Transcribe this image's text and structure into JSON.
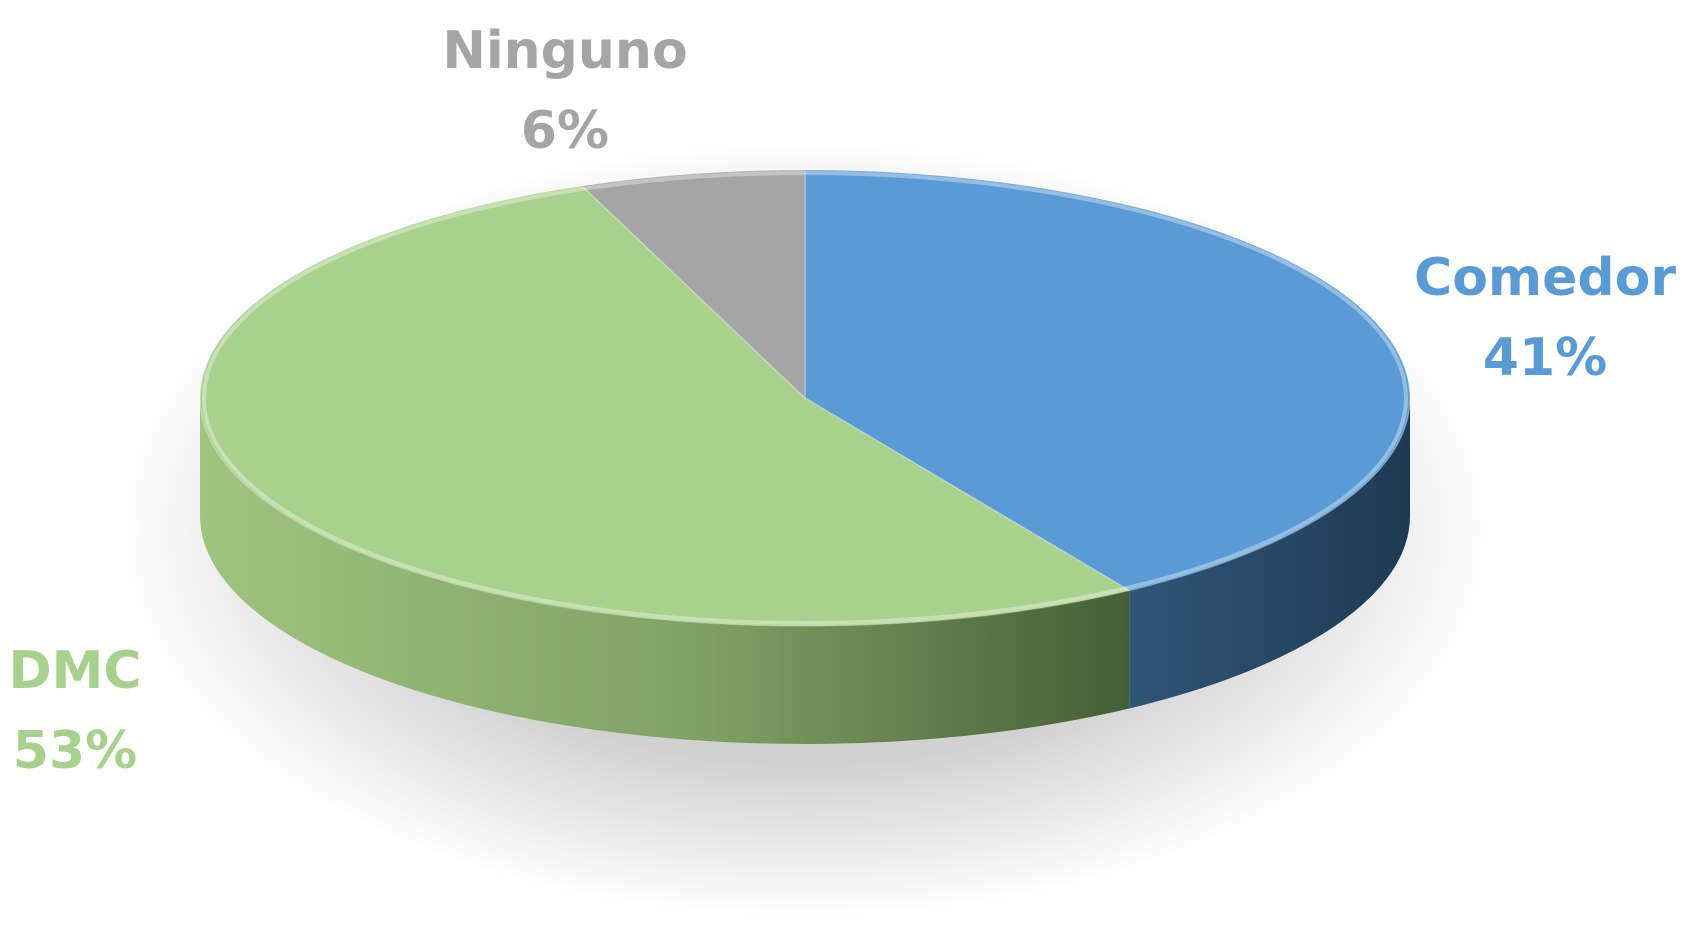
{
  "chart_data": {
    "type": "pie",
    "title": "",
    "three_d": true,
    "slices": [
      {
        "label": "Comedor",
        "value": 41,
        "display": "41%",
        "color": "#5b9bd5",
        "side_color": "#2c4a66",
        "label_color": "#5b9bd5"
      },
      {
        "label": "DMC",
        "value": 53,
        "display": "53%",
        "color": "#a9d18e",
        "side_color": "#5e7a49",
        "label_color": "#a9d18e"
      },
      {
        "label": "Ninguno",
        "value": 6,
        "display": "6%",
        "color": "#a5a5a5",
        "side_color": "#6f6f6f",
        "label_color": "#a5a5a5"
      }
    ],
    "legend": "none",
    "data_labels": "outside"
  }
}
